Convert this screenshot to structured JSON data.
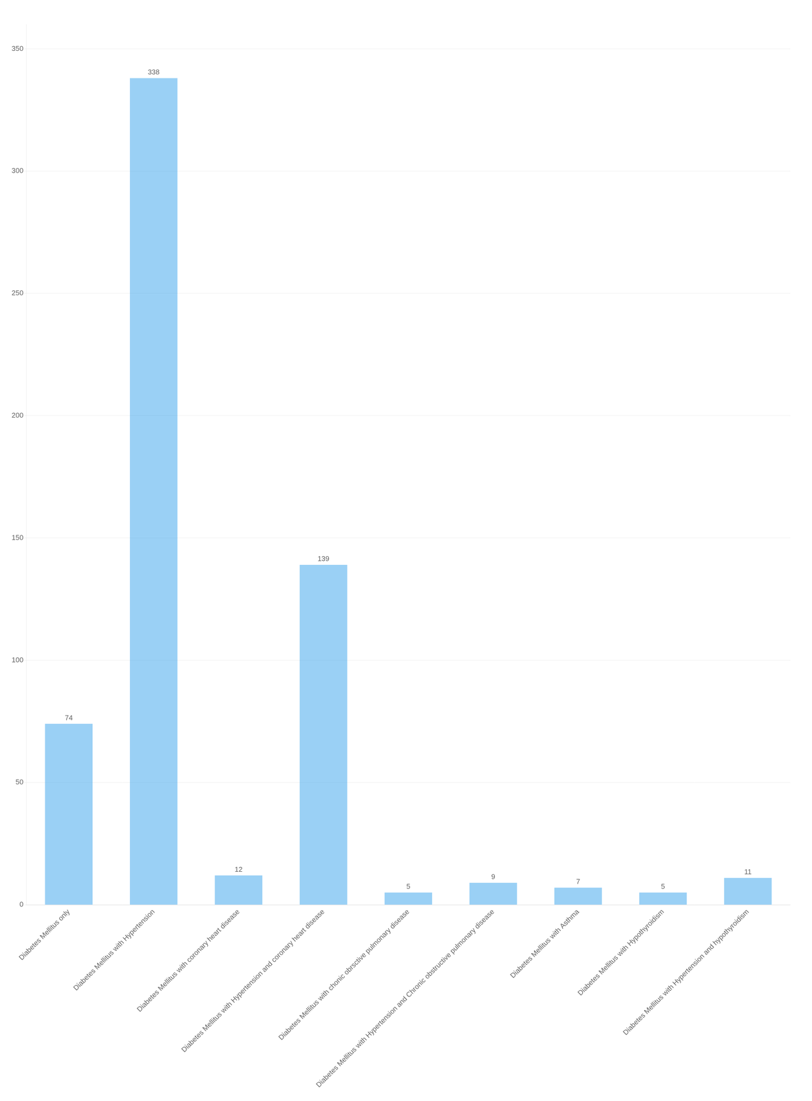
{
  "chart_data": {
    "type": "bar",
    "categories": [
      "Diabetes Mellitus only",
      "Diabetes Mellitus with Hypertension",
      "Diabetes Mellitus with coronary heart disease",
      "Diabetes Mellitus with Hypertension and coronary heart disease",
      "Diabetes Mellitus with chonic obrsctive pulmonary disease",
      "Diabetes Mellitus with Hypertension and Chronic obstructive pulmonary disease",
      "Diabetes Mellitus with Asthma",
      "Diabetes Mellitus with Hypothyroidism",
      "Diabetes Mellitus with Hypertension and hypothyroidism"
    ],
    "values": [
      74,
      338,
      12,
      139,
      5,
      9,
      7,
      5,
      11
    ],
    "ylim": [
      0,
      360
    ],
    "yticks": [
      0,
      50,
      100,
      150,
      200,
      250,
      300,
      350
    ],
    "grid": true,
    "data_labels": true
  }
}
